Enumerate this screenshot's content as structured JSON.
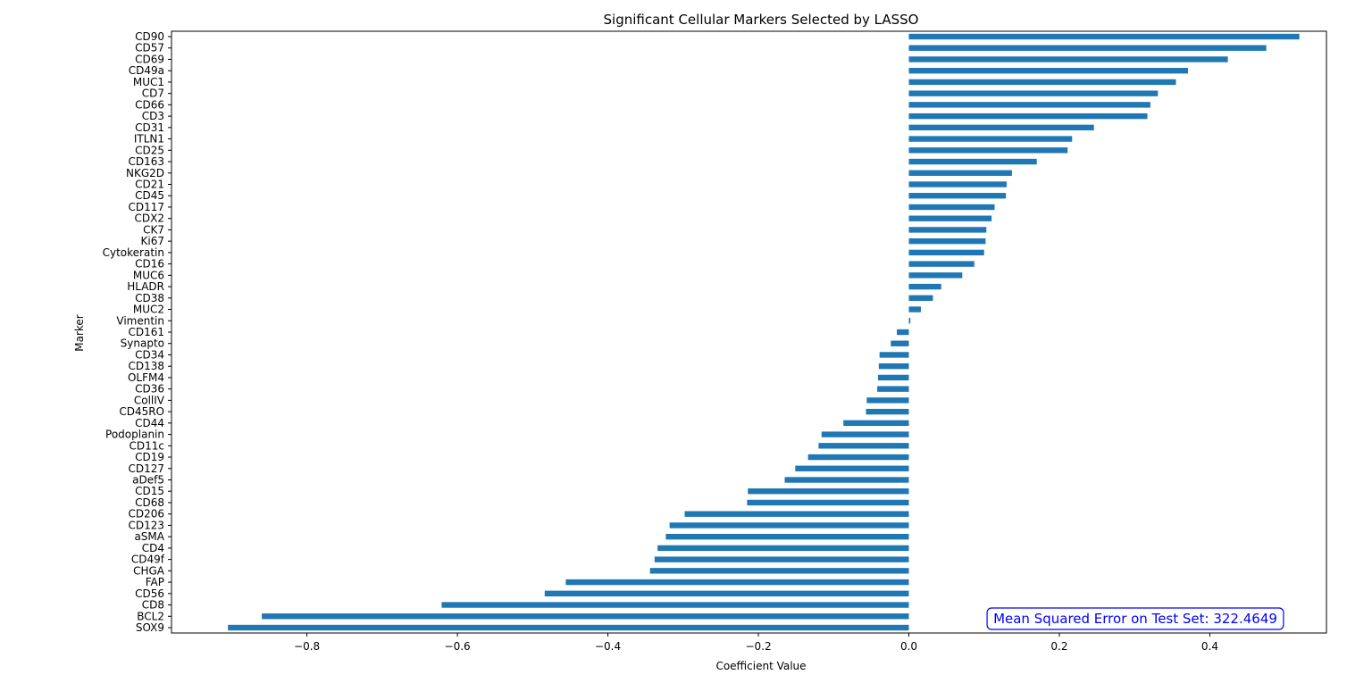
{
  "chart_data": {
    "type": "bar",
    "orientation": "horizontal",
    "title": "Significant Cellular Markers Selected by LASSO",
    "xlabel": "Coefficient Value",
    "ylabel": "Marker",
    "xlim": [
      -0.98,
      0.555
    ],
    "xticks": [
      -0.8,
      -0.6,
      -0.4,
      -0.2,
      0.0,
      0.2,
      0.4
    ],
    "xtick_labels": [
      "−0.8",
      "−0.6",
      "−0.4",
      "−0.2",
      "0.0",
      "0.2",
      "0.4"
    ],
    "grid": false,
    "bar_color": "#1f77b4",
    "categories": [
      "CD90",
      "CD57",
      "CD69",
      "CD49a",
      "MUC1",
      "CD7",
      "CD66",
      "CD3",
      "CD31",
      "ITLN1",
      "CD25",
      "CD163",
      "NKG2D",
      "CD21",
      "CD45",
      "CD117",
      "CDX2",
      "CK7",
      "Ki67",
      "Cytokeratin",
      "CD16",
      "MUC6",
      "HLADR",
      "CD38",
      "MUC2",
      "Vimentin",
      "CD161",
      "Synapto",
      "CD34",
      "CD138",
      "OLFM4",
      "CD36",
      "CollIV",
      "CD45RO",
      "CD44",
      "Podoplanin",
      "CD11c",
      "CD19",
      "CD127",
      "aDef5",
      "CD15",
      "CD68",
      "CD206",
      "CD123",
      "aSMA",
      "CD4",
      "CD49f",
      "CHGA",
      "FAP",
      "CD56",
      "CD8",
      "BCL2",
      "SOX9"
    ],
    "values": [
      0.519,
      0.475,
      0.424,
      0.371,
      0.355,
      0.331,
      0.321,
      0.317,
      0.246,
      0.217,
      0.211,
      0.17,
      0.137,
      0.13,
      0.129,
      0.114,
      0.11,
      0.103,
      0.102,
      0.1,
      0.087,
      0.071,
      0.043,
      0.032,
      0.016,
      0.002,
      -0.016,
      -0.024,
      -0.039,
      -0.04,
      -0.041,
      -0.042,
      -0.056,
      -0.057,
      -0.087,
      -0.116,
      -0.12,
      -0.134,
      -0.151,
      -0.165,
      -0.214,
      -0.215,
      -0.298,
      -0.318,
      -0.323,
      -0.334,
      -0.338,
      -0.344,
      -0.456,
      -0.484,
      -0.621,
      -0.86,
      -0.905
    ],
    "annotation": {
      "text": "Mean Squared Error on Test Set: 322.4649",
      "color": "#0000ff",
      "placement": "bottom-right"
    }
  }
}
